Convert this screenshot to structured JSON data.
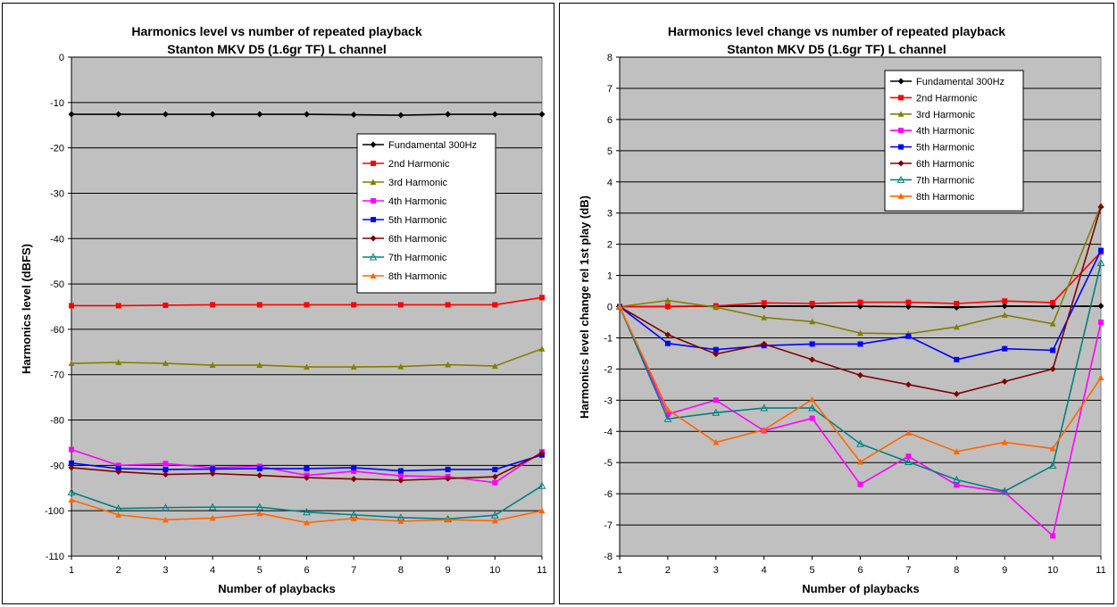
{
  "colors": {
    "plot_bg": "#c0c0c0",
    "gridline": "#000000",
    "fundamental": "#000000",
    "h2": "#ff0000",
    "h3": "#808000",
    "h4": "#ff00ff",
    "h5": "#0000ff",
    "h6": "#800000",
    "h7": "#008080",
    "h8": "#ff6600"
  },
  "chart_data": [
    {
      "type": "line",
      "title_line1": "Harmonics level vs number of repeated playback",
      "title_line2": "Stanton MKV D5 (1.6gr TF) L channel",
      "xlabel": "Number of  playbacks",
      "ylabel": "Harmonics level (dBFS)",
      "ylim": [
        -110,
        0
      ],
      "ystep": 10,
      "yticks": [
        "0",
        "-10",
        "-20",
        "-30",
        "-40",
        "-50",
        "-60",
        "-70",
        "-80",
        "-90",
        "-100",
        "-110"
      ],
      "categories": [
        "1",
        "2",
        "3",
        "4",
        "5",
        "6",
        "7",
        "8",
        "9",
        "10",
        "11"
      ],
      "grid": true,
      "legend_position": "center-right",
      "series": [
        {
          "name": "Fundamental 300Hz",
          "color": "#000000",
          "marker": "diamond",
          "values": [
            -12.6,
            -12.6,
            -12.6,
            -12.6,
            -12.6,
            -12.6,
            -12.7,
            -12.8,
            -12.6,
            -12.6,
            -12.6
          ]
        },
        {
          "name": "2nd Harmonic",
          "color": "#ff0000",
          "marker": "square",
          "values": [
            -54.8,
            -54.8,
            -54.7,
            -54.6,
            -54.6,
            -54.6,
            -54.6,
            -54.6,
            -54.6,
            -54.6,
            -53.0
          ]
        },
        {
          "name": "3rd Harmonic",
          "color": "#808000",
          "marker": "triangle",
          "values": [
            -67.5,
            -67.3,
            -67.5,
            -67.9,
            -67.9,
            -68.3,
            -68.3,
            -68.2,
            -67.8,
            -68.1,
            -64.3
          ]
        },
        {
          "name": "4th Harmonic",
          "color": "#ff00ff",
          "marker": "square",
          "values": [
            -86.5,
            -90.0,
            -89.6,
            -90.5,
            -90.2,
            -92.2,
            -91.3,
            -92.3,
            -92.5,
            -93.8,
            -87.0
          ]
        },
        {
          "name": "5th Harmonic",
          "color": "#0000ff",
          "marker": "square",
          "values": [
            -89.5,
            -90.7,
            -90.9,
            -90.8,
            -90.7,
            -90.7,
            -90.5,
            -91.2,
            -90.9,
            -90.9,
            -87.7
          ]
        },
        {
          "name": "6th Harmonic",
          "color": "#800000",
          "marker": "diamond",
          "values": [
            -90.5,
            -91.4,
            -92.0,
            -91.8,
            -92.2,
            -92.7,
            -93.0,
            -93.3,
            -92.9,
            -92.5,
            -87.3
          ]
        },
        {
          "name": "7th Harmonic",
          "color": "#008080",
          "marker": "open-triangle",
          "values": [
            -95.9,
            -99.5,
            -99.3,
            -99.2,
            -99.2,
            -100.3,
            -100.9,
            -101.5,
            -101.8,
            -101.0,
            -94.5
          ]
        },
        {
          "name": "8th Harmonic",
          "color": "#ff6600",
          "marker": "triangle",
          "values": [
            -97.6,
            -100.9,
            -102.0,
            -101.6,
            -100.6,
            -102.6,
            -101.7,
            -102.3,
            -102.0,
            -102.2,
            -100.0
          ]
        }
      ]
    },
    {
      "type": "line",
      "title_line1": "Harmonics level change vs number of repeated playback",
      "title_line2": "Stanton MKV D5 (1.6gr TF) L channel",
      "xlabel": "Number of playbacks",
      "ylabel": "Harmonics level change rel 1st play (dB)",
      "ylim": [
        -8,
        8
      ],
      "ystep": 1,
      "yticks": [
        "8",
        "7",
        "6",
        "5",
        "4",
        "3",
        "2",
        "1",
        "0",
        "-1",
        "-2",
        "-3",
        "-4",
        "-5",
        "-6",
        "-7",
        "-8"
      ],
      "categories": [
        "1",
        "2",
        "3",
        "4",
        "5",
        "6",
        "7",
        "8",
        "9",
        "10",
        "11"
      ],
      "grid": true,
      "legend_position": "top-center",
      "series": [
        {
          "name": "Fundamental 300Hz",
          "color": "#000000",
          "marker": "diamond",
          "values": [
            0,
            0,
            0.02,
            0.02,
            0.02,
            0.01,
            0,
            -0.03,
            0.02,
            0.01,
            0.02
          ]
        },
        {
          "name": "2nd Harmonic",
          "color": "#ff0000",
          "marker": "square",
          "values": [
            0,
            0.01,
            0.02,
            0.12,
            0.1,
            0.14,
            0.14,
            0.1,
            0.18,
            0.13,
            1.75
          ]
        },
        {
          "name": "3rd Harmonic",
          "color": "#808000",
          "marker": "triangle",
          "values": [
            0,
            0.2,
            -0.02,
            -0.35,
            -0.48,
            -0.85,
            -0.87,
            -0.65,
            -0.27,
            -0.55,
            3.25
          ]
        },
        {
          "name": "4th Harmonic",
          "color": "#ff00ff",
          "marker": "square",
          "values": [
            0,
            -3.45,
            -3.0,
            -3.98,
            -3.58,
            -5.7,
            -4.8,
            -5.72,
            -5.95,
            -7.35,
            -0.5
          ]
        },
        {
          "name": "5th Harmonic",
          "color": "#0000ff",
          "marker": "square",
          "values": [
            0,
            -1.18,
            -1.38,
            -1.25,
            -1.2,
            -1.2,
            -0.95,
            -1.7,
            -1.35,
            -1.4,
            1.8
          ]
        },
        {
          "name": "6th Harmonic",
          "color": "#800000",
          "marker": "diamond",
          "values": [
            0,
            -0.9,
            -1.52,
            -1.2,
            -1.7,
            -2.2,
            -2.5,
            -2.8,
            -2.4,
            -2.0,
            3.2
          ]
        },
        {
          "name": "7th Harmonic",
          "color": "#008080",
          "marker": "open-triangle",
          "values": [
            0,
            -3.6,
            -3.4,
            -3.25,
            -3.25,
            -4.4,
            -4.98,
            -5.55,
            -5.92,
            -5.1,
            1.4
          ]
        },
        {
          "name": "8th Harmonic",
          "color": "#ff6600",
          "marker": "triangle",
          "values": [
            0,
            -3.3,
            -4.35,
            -3.95,
            -2.98,
            -4.98,
            -4.05,
            -4.65,
            -4.35,
            -4.55,
            -2.28
          ]
        }
      ]
    }
  ]
}
